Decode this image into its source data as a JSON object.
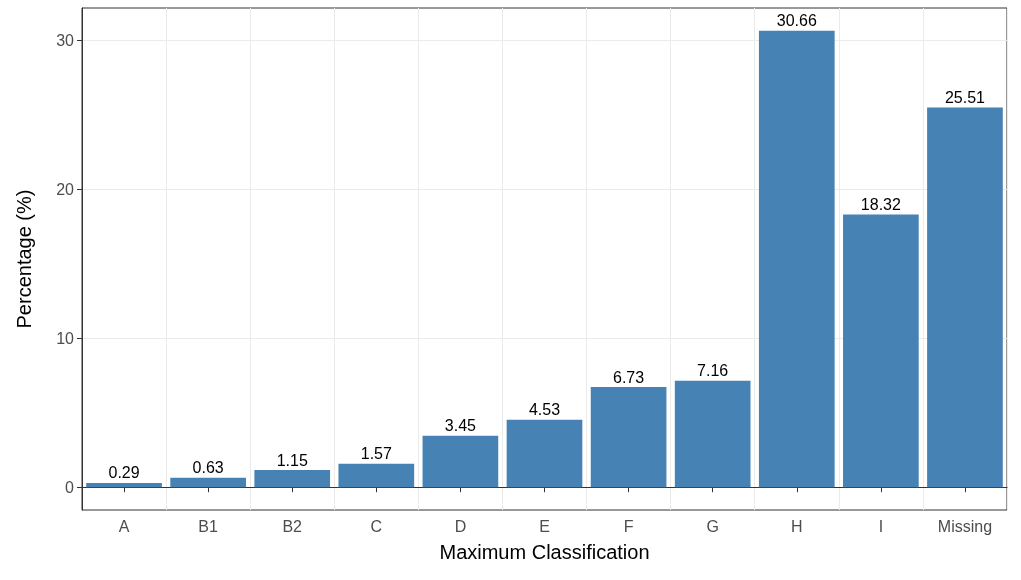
{
  "chart_data": {
    "type": "bar",
    "xlabel": "Maximum Classification",
    "ylabel": "Percentage (%)",
    "categories": [
      "A",
      "B1",
      "B2",
      "C",
      "D",
      "E",
      "F",
      "G",
      "H",
      "I",
      "Missing"
    ],
    "values": [
      0.29,
      0.63,
      1.15,
      1.57,
      3.45,
      4.53,
      6.73,
      7.16,
      30.66,
      18.32,
      25.51
    ],
    "color": "#4682b4",
    "ylim": [
      -1.53,
      32.19
    ],
    "yticks": [
      0,
      10,
      20,
      30
    ],
    "grid": true,
    "data_labels": true
  }
}
